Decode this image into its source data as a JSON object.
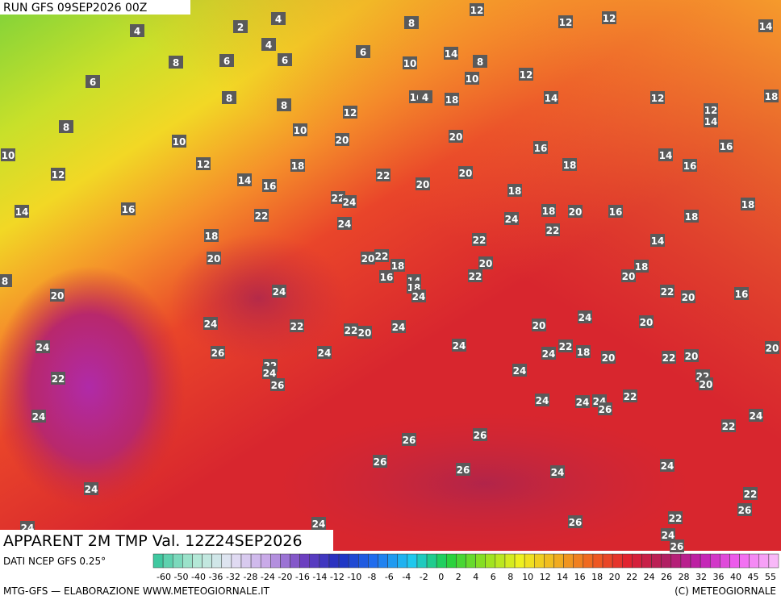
{
  "header": {
    "run": "RUN GFS 09SEP2026 00Z"
  },
  "title": "APPARENT 2M TMP Val. 12Z24SEP2026",
  "source": "DATI NCEP GFS 0.25°",
  "scale": {
    "labels": [
      -60,
      -50,
      -40,
      -36,
      -32,
      -28,
      -24,
      -20,
      -16,
      -14,
      -12,
      -10,
      -8,
      -6,
      -4,
      -2,
      0,
      2,
      4,
      6,
      8,
      10,
      12,
      14,
      16,
      18,
      20,
      22,
      24,
      26,
      28,
      32,
      36,
      40,
      45,
      55
    ]
  },
  "footer": {
    "left": "MTG-GFS — ELABORAZIONE WWW.METEOGIORNALE.IT",
    "right": "(C) METEOGIORNALE"
  },
  "map": {
    "labels": [
      4,
      2,
      4,
      4,
      8,
      12,
      12,
      12,
      14,
      8,
      6,
      6,
      6,
      14,
      8,
      10,
      12,
      6,
      10,
      8,
      8,
      16,
      4,
      18,
      14,
      12,
      12,
      18,
      14,
      12,
      8,
      10,
      20,
      20,
      16,
      10,
      12,
      18,
      18,
      14,
      16,
      16,
      10,
      12,
      14,
      16,
      22,
      20,
      20,
      18,
      22,
      24,
      18,
      14,
      16,
      22,
      24,
      24,
      18,
      20,
      16,
      18,
      22,
      18,
      22,
      14,
      20,
      20,
      22,
      18,
      20,
      18,
      16,
      14,
      18,
      22,
      20,
      8,
      20,
      24,
      24,
      22,
      20,
      16,
      24,
      24,
      22,
      22,
      20,
      24,
      20,
      20,
      24,
      26,
      24,
      24,
      24,
      22,
      18,
      20,
      22,
      22,
      20,
      20,
      24,
      22,
      26,
      24,
      22,
      20,
      24,
      24,
      24,
      26,
      22,
      24,
      22,
      24,
      26,
      26,
      26,
      26,
      24,
      24,
      24,
      22,
      26,
      24,
      26,
      22,
      24,
      24,
      26
    ]
  }
}
